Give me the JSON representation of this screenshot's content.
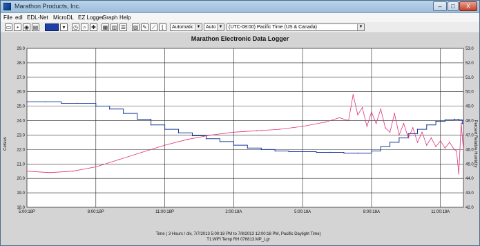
{
  "window": {
    "title": "Marathon Products, Inc.",
    "buttons": [
      {
        "label": "–",
        "name": "minimize"
      },
      {
        "label": "□",
        "name": "maximize"
      },
      {
        "label": "X",
        "name": "close"
      }
    ]
  },
  "menu": [
    "File",
    "edl",
    "EDL-Net",
    "MicroDL",
    "EZ Logger",
    "Graph",
    "Help"
  ],
  "toolbar": {
    "icons": [
      "open-folder-icon",
      "save-icon",
      "camera-icon",
      "print-icon",
      "color-bar-icon",
      "dropdown-icon",
      "clock-icon",
      "magnify-icon",
      "crosshair-icon",
      "table-icon",
      "grid-icon",
      "list-icon",
      "chart-icon",
      "pen-icon",
      "line-icon",
      "axis-icon"
    ],
    "scale_mode": "Automatic",
    "auto_mode": "Auto",
    "timezone": "(UTC-08:00) Pacific Time (US & Canada)"
  },
  "chart_data": {
    "type": "line",
    "title": "Marathon Electronic Data Logger",
    "xlabel": "Time ( 3 Hours / div, 7/7/2013 5:00:18 PM to 7/8/2013 12:00:18 PM, Pacific Daylight Time)",
    "subtitle": "T1:WiFi Temp RH 076813.MP_Lgr",
    "ylabel": "Celsius",
    "y2label": "Percent Relative Humidity",
    "x_ticks": [
      "5:00:18P",
      "8:00:18P",
      "11:00:18P",
      "2:00:18A",
      "5:00:18A",
      "8:00:18A",
      "11:00:18A"
    ],
    "x_range_hours": [
      0,
      19
    ],
    "ylim": [
      18.0,
      29.0
    ],
    "y_ticks": [
      "29.0",
      "28.0",
      "27.0",
      "26.0",
      "25.0",
      "24.0",
      "23.0",
      "22.0",
      "21.0",
      "20.0",
      "19.0",
      "18.0"
    ],
    "y2lim": [
      42.0,
      53.0
    ],
    "y2_ticks": [
      "53.0",
      "52.0",
      "51.0",
      "50.0",
      "49.0",
      "48.0",
      "47.0",
      "46.0",
      "45.0",
      "44.0",
      "43.0",
      "42.0"
    ],
    "grid": true,
    "series": [
      {
        "axis": "left",
        "color": "#1a3a9a",
        "x": [
          0,
          0.8,
          1.5,
          2.2,
          3.0,
          3.6,
          4.2,
          4.8,
          5.4,
          6.0,
          6.6,
          7.2,
          7.8,
          8.4,
          9.0,
          9.6,
          10.2,
          10.8,
          11.4,
          12.0,
          12.6,
          13.2,
          13.8,
          14.4,
          15.0,
          15.4,
          15.8,
          16.2,
          16.6,
          17.0,
          17.4,
          17.8,
          18.2,
          18.6,
          18.8,
          18.95,
          19.0
        ],
        "values": [
          25.3,
          25.3,
          25.2,
          25.2,
          25.0,
          24.8,
          24.5,
          24.1,
          23.7,
          23.4,
          23.15,
          22.95,
          22.75,
          22.55,
          22.3,
          22.1,
          22.0,
          21.9,
          21.85,
          21.85,
          21.8,
          21.8,
          21.75,
          21.75,
          21.9,
          22.2,
          22.5,
          22.8,
          23.1,
          23.4,
          23.7,
          23.95,
          24.05,
          24.1,
          24.05,
          23.8,
          24.05
        ]
      },
      {
        "axis": "right",
        "color": "#e0307a",
        "x": [
          0,
          1.0,
          2.0,
          3.0,
          4.0,
          5.0,
          6.0,
          7.0,
          8.0,
          9.0,
          10.0,
          11.0,
          12.0,
          13.0,
          13.6,
          14.0,
          14.2,
          14.4,
          14.6,
          14.8,
          15.0,
          15.2,
          15.4,
          15.6,
          15.8,
          16.0,
          16.2,
          16.4,
          16.6,
          16.8,
          17.0,
          17.2,
          17.4,
          17.6,
          17.8,
          18.0,
          18.2,
          18.4,
          18.6,
          18.7,
          18.8,
          18.9,
          19.0
        ],
        "values": [
          44.5,
          44.4,
          44.5,
          44.8,
          45.3,
          45.8,
          46.3,
          46.7,
          47.0,
          47.2,
          47.3,
          47.4,
          47.6,
          47.9,
          48.2,
          48.0,
          49.8,
          48.4,
          48.9,
          47.6,
          48.6,
          47.8,
          48.8,
          47.5,
          47.2,
          48.5,
          47.0,
          47.8,
          46.8,
          47.5,
          46.5,
          47.2,
          46.3,
          46.8,
          46.2,
          46.6,
          46.1,
          46.5,
          46.0,
          45.9,
          44.3,
          47.8,
          46.0
        ]
      }
    ]
  }
}
